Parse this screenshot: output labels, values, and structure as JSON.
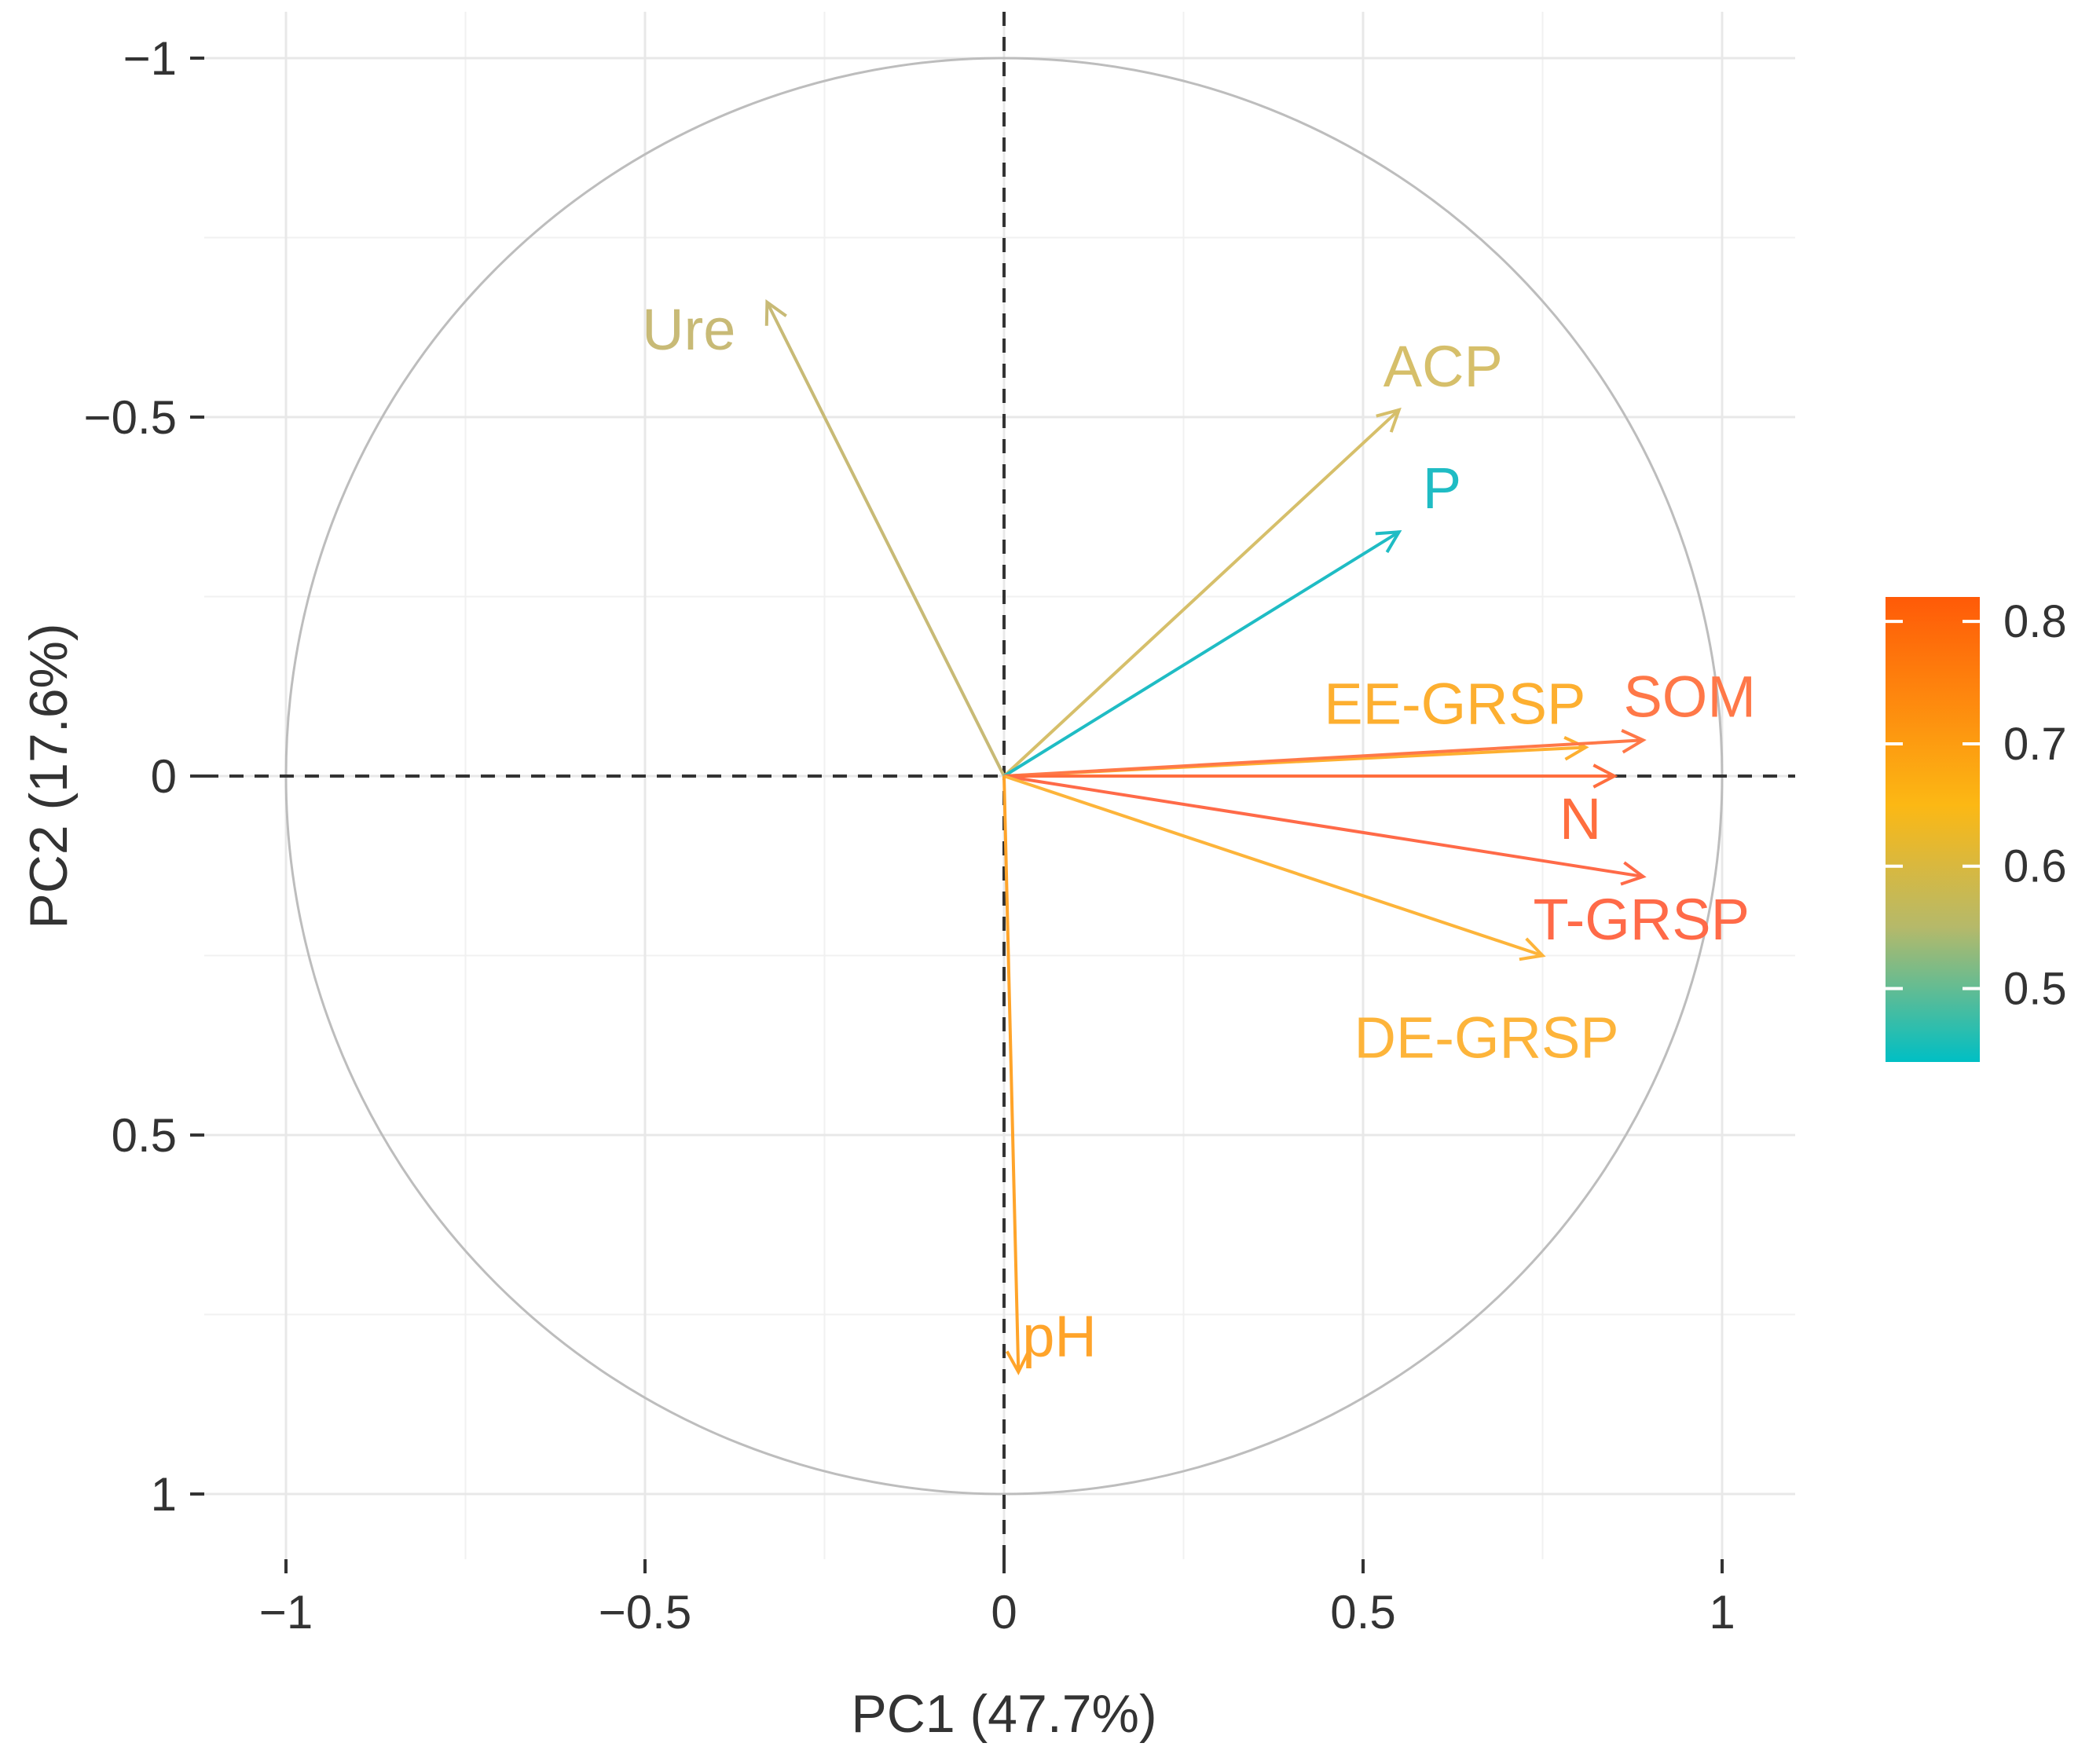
{
  "chart_data": {
    "type": "scatter",
    "subtype": "pca-variable-correlation-circle",
    "title": "",
    "xlabel": "PC1 (47.7%)",
    "ylabel": "PC2 (17.6%)",
    "xlim": [
      -1.1,
      1.1
    ],
    "ylim": [
      -1.05,
      1.1
    ],
    "y_axis_reversed": true,
    "x_ticks": [
      -1,
      -0.5,
      0,
      0.5,
      1
    ],
    "x_tick_labels": [
      "−1",
      "−0.5",
      "0",
      "0.5",
      "1"
    ],
    "y_ticks": [
      -1,
      -0.5,
      0,
      0.5,
      1
    ],
    "y_tick_labels": [
      "−1",
      "−0.5",
      "0",
      "0.5",
      "1"
    ],
    "grid": true,
    "unit_circle": true,
    "reference_lines": "dashed lines at x = 0 and y = 0",
    "color_scale": {
      "label": "",
      "range": [
        0.44,
        0.82
      ],
      "ticks": [
        0.5,
        0.6,
        0.7,
        0.8
      ],
      "tick_labels": [
        "0.5",
        "0.6",
        "0.7",
        "0.8"
      ],
      "stops": [
        {
          "value": 0.44,
          "color": "#00BFC4"
        },
        {
          "value": 0.55,
          "color": "#B5B96A"
        },
        {
          "value": 0.65,
          "color": "#FCB814"
        },
        {
          "value": 0.82,
          "color": "#FF5A08"
        }
      ]
    },
    "legend_position": "right",
    "variables": [
      {
        "name": "Ure",
        "x": -0.33,
        "y": -0.66,
        "contrib": 0.57,
        "color": "#C8BA76"
      },
      {
        "name": "ACP",
        "x": 0.55,
        "y": -0.51,
        "contrib": 0.58,
        "color": "#D6BF6A"
      },
      {
        "name": "P",
        "x": 0.55,
        "y": -0.34,
        "contrib": 0.44,
        "color": "#1FBCC4"
      },
      {
        "name": "EE-GRSP",
        "x": 0.81,
        "y": -0.04,
        "contrib": 0.66,
        "color": "#FDAF30"
      },
      {
        "name": "SOM",
        "x": 0.89,
        "y": -0.05,
        "contrib": 0.77,
        "color": "#FF7848"
      },
      {
        "name": "N",
        "x": 0.85,
        "y": 0.0,
        "contrib": 0.8,
        "color": "#FF6E3E"
      },
      {
        "name": "T-GRSP",
        "x": 0.89,
        "y": 0.14,
        "contrib": 0.79,
        "color": "#FF6A48"
      },
      {
        "name": "DE-GRSP",
        "x": 0.75,
        "y": 0.25,
        "contrib": 0.66,
        "color": "#FDB43A"
      },
      {
        "name": "pH",
        "x": 0.02,
        "y": 0.83,
        "contrib": 0.7,
        "color": "#FFA42A"
      }
    ]
  }
}
